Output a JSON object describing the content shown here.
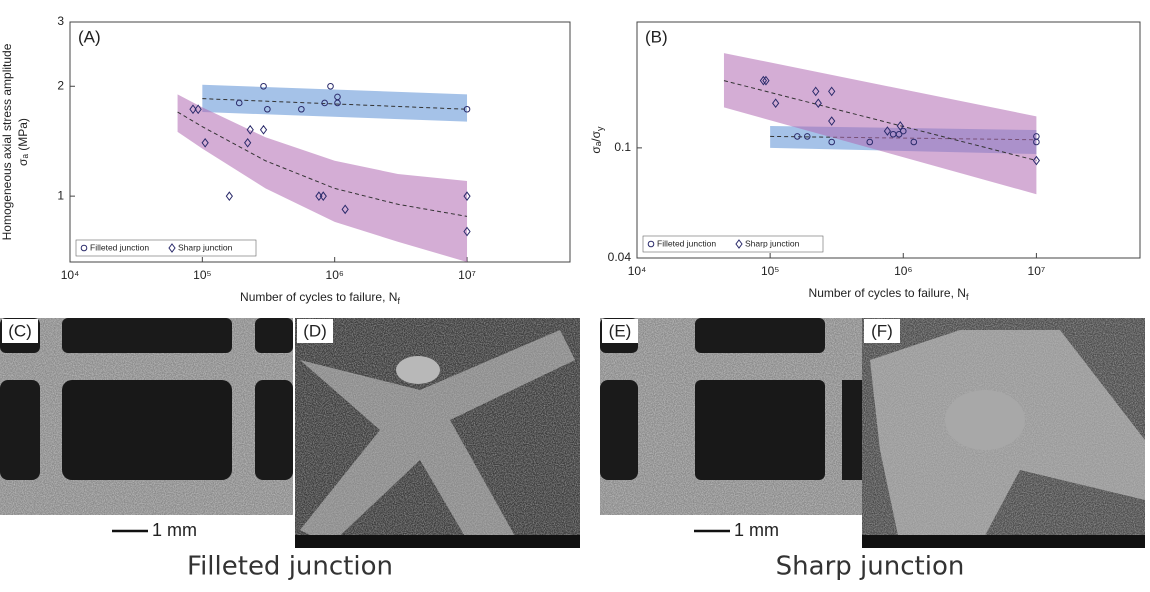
{
  "chart_data": [
    {
      "type": "scatter",
      "title": "(A)",
      "ylabel": [
        "Homogeneous axial stress amplitude",
        "σₐ (MPa)"
      ],
      "xlabel": "Number of cycles to failure, N",
      "xlabel_sub": "f",
      "xscale": "log",
      "yscale": "log",
      "xlim": [
        10000,
        60000000
      ],
      "ylim": [
        0.66,
        3
      ],
      "xticks": [
        {
          "value": 10000,
          "label": "10⁴"
        },
        {
          "value": 100000,
          "label": "10⁵"
        },
        {
          "value": 1000000,
          "label": "10⁶"
        },
        {
          "value": 10000000,
          "label": "10⁷"
        }
      ],
      "yticks": [
        1,
        2,
        3
      ],
      "legend": "lower left",
      "series": [
        {
          "name": "Filleted junction",
          "marker": "circle",
          "color": "#5b8fd6",
          "x": [
            190000,
            290000,
            310000,
            560000,
            840000,
            930000,
            1050000,
            1050000,
            10000000
          ],
          "values": [
            1.8,
            2.0,
            1.73,
            1.73,
            1.8,
            2.0,
            1.87,
            1.8,
            1.73
          ],
          "band_x": [
            100000,
            10000000
          ],
          "band_lower": [
            1.7,
            1.6
          ],
          "band_upper": [
            2.02,
            1.9
          ],
          "fit": [
            1.85,
            1.73
          ]
        },
        {
          "name": "Sharp junction",
          "marker": "diamond",
          "color": "#b06ab3",
          "x": [
            85000,
            93000,
            105000,
            220000,
            230000,
            290000,
            160000,
            760000,
            820000,
            1200000,
            10000000,
            10000000
          ],
          "values": [
            1.73,
            1.73,
            1.4,
            1.4,
            1.52,
            1.52,
            1.0,
            1.0,
            1.0,
            0.92,
            1.0,
            0.8
          ],
          "band_x": [
            65000,
            100000,
            300000,
            1000000,
            3000000,
            10000000
          ],
          "band_lower": [
            1.5,
            1.35,
            1.05,
            0.85,
            0.75,
            0.66
          ],
          "band_upper": [
            1.9,
            1.75,
            1.45,
            1.25,
            1.15,
            1.1
          ],
          "fit": [
            1.7,
            1.55,
            1.25,
            1.05,
            0.95,
            0.88
          ]
        }
      ]
    },
    {
      "type": "scatter",
      "title": "(B)",
      "ylabel": [
        "σₐ/σ"
      ],
      "ylabel_sub": "y",
      "xlabel": "Number of cycles to failure, N",
      "xlabel_sub": "f",
      "xscale": "log",
      "yscale": "log",
      "xlim": [
        10000,
        60000000
      ],
      "ylim": [
        0.04,
        0.285
      ],
      "xticks": [
        {
          "value": 10000,
          "label": "10⁴"
        },
        {
          "value": 100000,
          "label": "10⁵"
        },
        {
          "value": 1000000,
          "label": "10⁶"
        },
        {
          "value": 10000000,
          "label": "10⁷"
        }
      ],
      "yticks": [
        0.04,
        0.1
      ],
      "legend": "lower left",
      "series": [
        {
          "name": "Filleted junction",
          "marker": "circle",
          "color": "#5b8fd6",
          "x": [
            160000,
            190000,
            290000,
            560000,
            840000,
            930000,
            1000000,
            1200000,
            10000000,
            10000000
          ],
          "values": [
            0.11,
            0.11,
            0.105,
            0.105,
            0.112,
            0.112,
            0.115,
            0.105,
            0.11,
            0.105
          ],
          "band_x": [
            100000,
            10000000
          ],
          "band_lower": [
            0.1,
            0.095
          ],
          "band_upper": [
            0.12,
            0.116
          ],
          "fit": [
            0.11,
            0.107
          ]
        },
        {
          "name": "Sharp junction",
          "marker": "diamond",
          "color": "#b06ab3",
          "x": [
            89000,
            93000,
            110000,
            220000,
            230000,
            290000,
            290000,
            760000,
            950000,
            10000000
          ],
          "values": [
            0.175,
            0.175,
            0.145,
            0.16,
            0.145,
            0.16,
            0.125,
            0.115,
            0.12,
            0.09
          ],
          "band_x": [
            45000,
            10000000
          ],
          "band_lower": [
            0.14,
            0.068
          ],
          "band_upper": [
            0.22,
            0.13
          ],
          "fit": [
            0.175,
            0.09
          ]
        }
      ]
    }
  ],
  "panels": [
    {
      "label": "(C)",
      "scale_bar": "1 mm"
    },
    {
      "label": "(D)"
    },
    {
      "label": "(E)",
      "scale_bar": "1 mm"
    },
    {
      "label": "(F)"
    }
  ],
  "captions": [
    "Filleted junction",
    "Sharp junction"
  ]
}
